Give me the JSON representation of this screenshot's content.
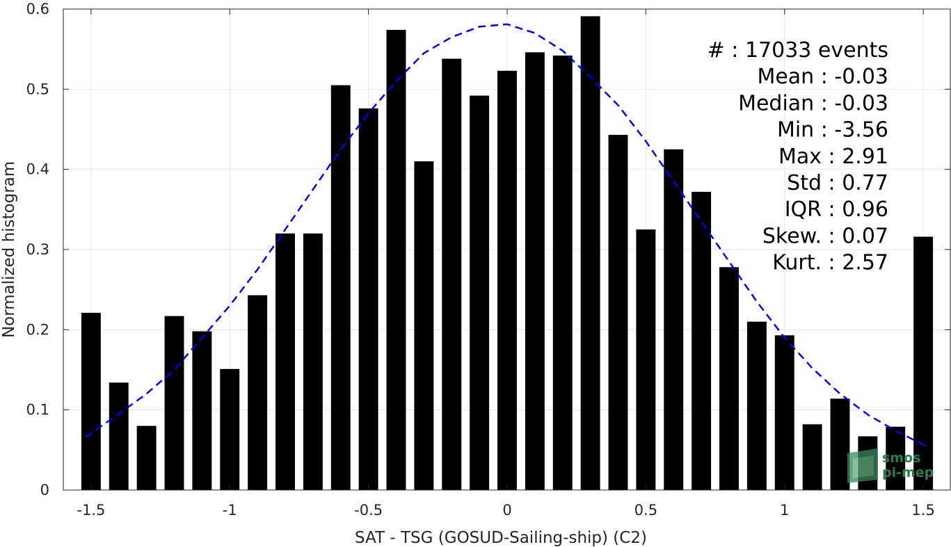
{
  "chart_data": {
    "type": "bar",
    "xlabel": "SAT - TSG (GOSUD-Sailing-ship) (C2)",
    "ylabel": "Normalized histogram",
    "xlim": [
      -1.6,
      1.6
    ],
    "ylim": [
      0,
      0.6
    ],
    "xticks": [
      -1.5,
      -1,
      -0.5,
      0,
      0.5,
      1,
      1.5
    ],
    "xtick_labels": [
      "-1.5",
      "-1",
      "-0.5",
      "0",
      "0.5",
      "1",
      "1.5"
    ],
    "yticks": [
      0,
      0.1,
      0.2,
      0.3,
      0.4,
      0.5,
      0.6
    ],
    "ytick_labels": [
      "0",
      "0.1",
      "0.2",
      "0.3",
      "0.4",
      "0.5",
      "0.6"
    ],
    "grid": true,
    "bar_color": "#000000",
    "bar_width": 0.07,
    "x": [
      -1.5,
      -1.4,
      -1.3,
      -1.2,
      -1.1,
      -1.0,
      -0.9,
      -0.8,
      -0.7,
      -0.6,
      -0.5,
      -0.4,
      -0.3,
      -0.2,
      -0.1,
      0.0,
      0.1,
      0.2,
      0.3,
      0.4,
      0.5,
      0.6,
      0.7,
      0.8,
      0.9,
      1.0,
      1.1,
      1.2,
      1.3,
      1.4,
      1.5
    ],
    "values": [
      0.221,
      0.134,
      0.08,
      0.217,
      0.198,
      0.151,
      0.243,
      0.32,
      0.32,
      0.505,
      0.476,
      0.574,
      0.41,
      0.538,
      0.492,
      0.523,
      0.546,
      0.542,
      0.591,
      0.443,
      0.325,
      0.425,
      0.372,
      0.278,
      0.21,
      0.193,
      0.082,
      0.114,
      0.067,
      0.079,
      0.316
    ],
    "fit_curve": {
      "style": "dashed",
      "color": "#0000ee",
      "x": [
        -1.52,
        -1.4,
        -1.3,
        -1.2,
        -1.1,
        -1.0,
        -0.9,
        -0.8,
        -0.7,
        -0.6,
        -0.5,
        -0.4,
        -0.3,
        -0.2,
        -0.1,
        0.0,
        0.1,
        0.2,
        0.3,
        0.4,
        0.5,
        0.6,
        0.7,
        0.8,
        0.9,
        1.0,
        1.1,
        1.2,
        1.3,
        1.4,
        1.52
      ],
      "y": [
        0.066,
        0.095,
        0.12,
        0.15,
        0.19,
        0.23,
        0.275,
        0.325,
        0.375,
        0.425,
        0.47,
        0.51,
        0.545,
        0.565,
        0.578,
        0.581,
        0.57,
        0.548,
        0.515,
        0.48,
        0.435,
        0.385,
        0.335,
        0.285,
        0.235,
        0.19,
        0.152,
        0.12,
        0.094,
        0.074,
        0.053
      ]
    },
    "stats": [
      {
        "label": "#  : 17033 events"
      },
      {
        "label": "Mean : -0.03"
      },
      {
        "label": "Median : -0.03"
      },
      {
        "label": "Min : -3.56"
      },
      {
        "label": "Max : 2.91"
      },
      {
        "label": "Std : 0.77"
      },
      {
        "label": "IQR : 0.96"
      },
      {
        "label": "Skew. : 0.07"
      },
      {
        "label": "Kurt. : 2.57"
      }
    ]
  },
  "logo": {
    "line1": "smos",
    "line2": "pi-mep",
    "color": "#2e7d4f"
  }
}
